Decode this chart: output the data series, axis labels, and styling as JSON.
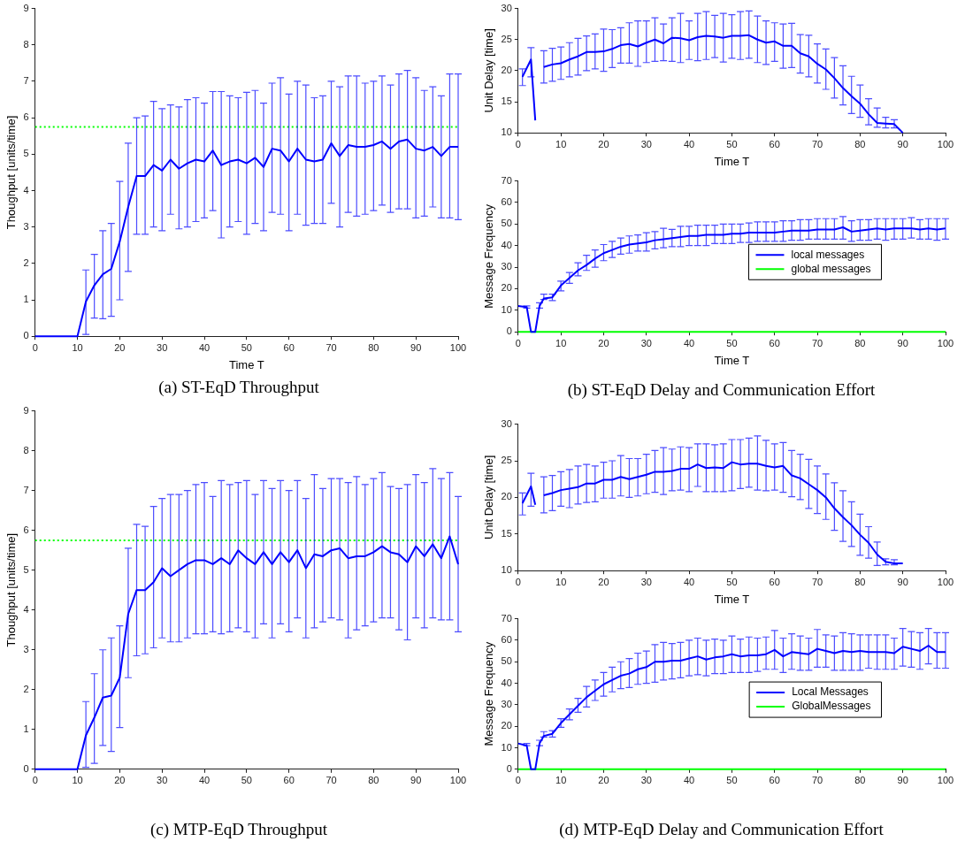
{
  "chart_data": [
    {
      "type": "line",
      "xlabel": "Time T",
      "ylabel": "Thoughput [units/time]",
      "xlim": [
        0,
        100
      ],
      "xticks": [
        0,
        10,
        20,
        30,
        40,
        50,
        60,
        70,
        80,
        90,
        100
      ],
      "ylim": [
        0,
        9
      ],
      "yticks": [
        0,
        1,
        2,
        3,
        4,
        5,
        6,
        7,
        8,
        9
      ],
      "marker": "none",
      "x": [
        0,
        2,
        4,
        6,
        8,
        10,
        12,
        14,
        16,
        18,
        20,
        22,
        24,
        26,
        28,
        30,
        32,
        34,
        36,
        38,
        40,
        42,
        44,
        46,
        48,
        50,
        52,
        54,
        56,
        58,
        60,
        62,
        64,
        66,
        68,
        70,
        72,
        74,
        76,
        78,
        80,
        82,
        84,
        86,
        88,
        90,
        92,
        94,
        96,
        98,
        100
      ],
      "series": [
        {
          "color": "#0000ff",
          "values": [
            0,
            0,
            0,
            0,
            0,
            0,
            0.95,
            1.4,
            1.7,
            1.85,
            2.6,
            3.55,
            4.4,
            4.4,
            4.7,
            4.55,
            4.85,
            4.6,
            4.75,
            4.85,
            4.8,
            5.1,
            4.7,
            4.8,
            4.85,
            4.75,
            4.9,
            4.65,
            5.15,
            5.1,
            4.8,
            5.15,
            4.85,
            4.8,
            4.85,
            5.3,
            4.95,
            5.25,
            5.2,
            5.2,
            5.25,
            5.35,
            5.15,
            5.35,
            5.4,
            5.15,
            5.1,
            5.2,
            4.95,
            5.2,
            5.2
          ],
          "errors": [
            null,
            null,
            null,
            null,
            null,
            null,
            [
              0.05,
              1.82
            ],
            [
              0.5,
              2.25
            ],
            [
              0.48,
              2.9
            ],
            [
              0.55,
              3.1
            ],
            [
              1.0,
              4.25
            ],
            [
              1.78,
              5.3
            ],
            [
              2.8,
              6.0
            ],
            [
              2.8,
              6.05
            ],
            [
              3.0,
              6.45
            ],
            [
              2.9,
              6.25
            ],
            [
              3.35,
              6.35
            ],
            [
              2.95,
              6.3
            ],
            [
              3.0,
              6.5
            ],
            [
              3.15,
              6.55
            ],
            [
              3.25,
              6.4
            ],
            [
              3.45,
              6.72
            ],
            [
              2.7,
              6.72
            ],
            [
              3.0,
              6.6
            ],
            [
              3.15,
              6.55
            ],
            [
              2.8,
              6.7
            ],
            [
              3.1,
              6.75
            ],
            [
              2.9,
              6.4
            ],
            [
              3.4,
              6.95
            ],
            [
              3.35,
              7.1
            ],
            [
              2.9,
              6.65
            ],
            [
              3.35,
              7.0
            ],
            [
              3.05,
              6.9
            ],
            [
              3.1,
              6.55
            ],
            [
              3.1,
              6.6
            ],
            [
              3.65,
              7.0
            ],
            [
              3.0,
              6.85
            ],
            [
              3.4,
              7.15
            ],
            [
              3.3,
              7.15
            ],
            [
              3.35,
              6.95
            ],
            [
              3.45,
              7.0
            ],
            [
              3.6,
              7.15
            ],
            [
              3.4,
              6.9
            ],
            [
              3.5,
              7.2
            ],
            [
              3.5,
              7.3
            ],
            [
              3.25,
              7.1
            ],
            [
              3.3,
              6.75
            ],
            [
              3.55,
              6.85
            ],
            [
              3.25,
              6.6
            ],
            [
              3.25,
              7.2
            ],
            [
              3.2,
              7.2
            ]
          ]
        }
      ],
      "ref_lines": [
        {
          "axis": "y",
          "value": 5.75,
          "color": "#00ff00",
          "line_style": "dotted"
        }
      ],
      "annotations": [
        "(a) ST-EqD Throughput"
      ]
    },
    {
      "type": "line",
      "xlabel": "Time T",
      "ylabel": "Unit Delay [time]",
      "xlim": [
        0,
        100
      ],
      "xticks": [
        0,
        10,
        20,
        30,
        40,
        50,
        60,
        70,
        80,
        90,
        100
      ],
      "ylim": [
        10,
        30
      ],
      "yticks": [
        10,
        15,
        20,
        25,
        30
      ],
      "marker": "none",
      "series": [
        {
          "color": "#0000ff",
          "x": [
            1,
            3,
            4,
            5,
            6,
            8,
            10,
            12,
            14,
            16,
            18,
            20,
            22,
            24,
            26,
            28,
            30,
            32,
            34,
            36,
            38,
            40,
            42,
            44,
            46,
            48,
            50,
            52,
            54,
            56,
            58,
            60,
            62,
            64,
            66,
            68,
            70,
            72,
            74,
            76,
            78,
            80,
            82,
            84,
            86,
            88,
            90
          ],
          "values": [
            19,
            21.8,
            12,
            null,
            20.6,
            21,
            21.2,
            21.8,
            22.3,
            23,
            23,
            23.1,
            23.5,
            24.1,
            24.3,
            23.9,
            24.5,
            25,
            24.4,
            25.3,
            25.2,
            24.9,
            25.4,
            25.6,
            25.5,
            25.3,
            25.6,
            25.6,
            25.7,
            25,
            24.5,
            24.7,
            24,
            24,
            22.8,
            22.3,
            21.1,
            20.2,
            18.8,
            17.2,
            15.9,
            14.7,
            13,
            11.6,
            11.5,
            11.4,
            10
          ],
          "errors": [
            [
              17.6,
              20.3
            ],
            [
              19,
              23.7
            ],
            null,
            null,
            [
              18,
              23.2
            ],
            [
              18.3,
              23.6
            ],
            [
              18.6,
              23.8
            ],
            [
              19,
              24.5
            ],
            [
              19.3,
              25.2
            ],
            [
              20,
              25.6
            ],
            [
              20.3,
              25.9
            ],
            [
              19.9,
              26.7
            ],
            [
              20.5,
              26.6
            ],
            [
              21.2,
              26.9
            ],
            [
              21.2,
              27.7
            ],
            [
              20.7,
              28
            ],
            [
              21.3,
              28
            ],
            [
              21.5,
              28.5
            ],
            [
              21.6,
              27.5
            ],
            [
              21.5,
              28.5
            ],
            [
              21.3,
              29.2
            ],
            [
              21.8,
              28
            ],
            [
              21.6,
              29.2
            ],
            [
              21.8,
              29.5
            ],
            [
              22.1,
              28.9
            ],
            [
              21.4,
              29.2
            ],
            [
              22,
              29
            ],
            [
              21.8,
              29.5
            ],
            [
              22,
              29.6
            ],
            [
              21.3,
              28.8
            ],
            [
              21,
              28
            ],
            [
              21.5,
              27.7
            ],
            [
              20.4,
              27.5
            ],
            [
              20.5,
              27.6
            ],
            [
              19.6,
              25.8
            ],
            [
              19,
              25.7
            ],
            [
              18,
              24.3
            ],
            [
              17,
              23.5
            ],
            [
              15.6,
              22.1
            ],
            [
              14.5,
              20.8
            ],
            [
              13.1,
              19.1
            ],
            [
              12.5,
              17.7
            ],
            [
              11.3,
              15.5
            ],
            [
              10.9,
              14
            ],
            [
              10.8,
              12.5
            ],
            [
              10.8,
              12.1
            ],
            null
          ]
        }
      ]
    },
    {
      "type": "line",
      "xlabel": "Time T",
      "ylabel": "Message Frequency",
      "xlim": [
        0,
        100
      ],
      "xticks": [
        0,
        10,
        20,
        30,
        40,
        50,
        60,
        70,
        80,
        90,
        100
      ],
      "ylim": [
        0,
        70
      ],
      "yticks": [
        0,
        10,
        20,
        30,
        40,
        50,
        60,
        70
      ],
      "marker": "none",
      "legend": "right",
      "series": [
        {
          "name": "local messages",
          "color": "#0000ff",
          "x": [
            0,
            2,
            3,
            4,
            5,
            6,
            8,
            10,
            12,
            14,
            16,
            18,
            20,
            22,
            24,
            26,
            28,
            30,
            32,
            34,
            36,
            38,
            40,
            42,
            44,
            46,
            48,
            50,
            52,
            54,
            56,
            58,
            60,
            62,
            64,
            66,
            68,
            70,
            72,
            74,
            76,
            78,
            80,
            82,
            84,
            86,
            88,
            90,
            92,
            94,
            96,
            98,
            100
          ],
          "values": [
            12,
            11.5,
            0,
            0,
            12,
            15.5,
            16,
            21.5,
            25,
            28.5,
            31,
            34,
            36.5,
            38,
            39.5,
            40.5,
            41,
            41.5,
            42.5,
            43,
            43.5,
            44,
            44.5,
            44.5,
            45,
            45,
            45,
            45.5,
            45.5,
            46,
            46,
            46,
            46,
            46.5,
            47,
            47,
            47,
            47.5,
            47.5,
            47.5,
            48.5,
            46.5,
            47,
            47.5,
            48,
            47.5,
            48,
            48,
            48,
            47.5,
            48,
            47.5,
            48
          ],
          "errors": [
            null,
            [
              11,
              12
            ],
            null,
            null,
            [
              11,
              13.5
            ],
            [
              15,
              17.5
            ],
            [
              14.5,
              17.5
            ],
            [
              19,
              23.5
            ],
            [
              22.5,
              27.5
            ],
            [
              26,
              32
            ],
            [
              28.5,
              35.5
            ],
            [
              30,
              38
            ],
            [
              33,
              40.5
            ],
            [
              34.5,
              42
            ],
            [
              36,
              43.5
            ],
            [
              36.5,
              44.5
            ],
            [
              37.5,
              45
            ],
            [
              37.5,
              46
            ],
            [
              38.5,
              46.5
            ],
            [
              39,
              48
            ],
            [
              39.5,
              47.5
            ],
            [
              39.5,
              49
            ],
            [
              40,
              49
            ],
            [
              40,
              49.5
            ],
            [
              40,
              49.5
            ],
            [
              41,
              49.5
            ],
            [
              41,
              50
            ],
            [
              41,
              50
            ],
            [
              41.5,
              50
            ],
            [
              41.5,
              50.5
            ],
            [
              42,
              51
            ],
            [
              42,
              51
            ],
            [
              42,
              51
            ],
            [
              42,
              51.5
            ],
            [
              42.5,
              51.5
            ],
            [
              42.5,
              52
            ],
            [
              43,
              52
            ],
            [
              43,
              52.5
            ],
            [
              43,
              52.5
            ],
            [
              43,
              52.5
            ],
            [
              43,
              53.5
            ],
            [
              42,
              51.5
            ],
            [
              42.5,
              52
            ],
            [
              42.5,
              52
            ],
            [
              43,
              52.5
            ],
            [
              42.5,
              52.5
            ],
            [
              43,
              52.5
            ],
            [
              43,
              52.5
            ],
            [
              43.5,
              53
            ],
            [
              43,
              52
            ],
            [
              43,
              52.5
            ],
            [
              42.5,
              52.5
            ],
            [
              43,
              52.5
            ]
          ]
        },
        {
          "name": "global messages",
          "color": "#00ff00",
          "x": [
            0,
            100
          ],
          "values": [
            0,
            0
          ]
        }
      ],
      "annotations": [
        "(b) ST-EqD Delay and Communication Effort"
      ]
    },
    {
      "type": "line",
      "ylabel": "Thoughput [units/time]",
      "xlim": [
        0,
        100
      ],
      "xticks": [
        0,
        10,
        20,
        30,
        40,
        50,
        60,
        70,
        80,
        90,
        100
      ],
      "ylim": [
        0,
        9
      ],
      "yticks": [
        0,
        1,
        2,
        3,
        4,
        5,
        6,
        7,
        8,
        9
      ],
      "marker": "none",
      "x": [
        0,
        2,
        4,
        6,
        8,
        10,
        12,
        14,
        16,
        18,
        20,
        22,
        24,
        26,
        28,
        30,
        32,
        34,
        36,
        38,
        40,
        42,
        44,
        46,
        48,
        50,
        52,
        54,
        56,
        58,
        60,
        62,
        64,
        66,
        68,
        70,
        72,
        74,
        76,
        78,
        80,
        82,
        84,
        86,
        88,
        90,
        92,
        94,
        96,
        98,
        100
      ],
      "series": [
        {
          "color": "#0000ff",
          "values": [
            0,
            0,
            0,
            0,
            0,
            0,
            0.85,
            1.3,
            1.8,
            1.85,
            2.3,
            3.9,
            4.5,
            4.5,
            4.7,
            5.05,
            4.85,
            5.0,
            5.15,
            5.25,
            5.25,
            5.15,
            5.3,
            5.15,
            5.5,
            5.3,
            5.15,
            5.45,
            5.15,
            5.45,
            5.2,
            5.5,
            5.05,
            5.4,
            5.35,
            5.5,
            5.55,
            5.3,
            5.35,
            5.35,
            5.45,
            5.6,
            5.45,
            5.4,
            5.2,
            5.6,
            5.35,
            5.65,
            5.3,
            5.85,
            5.15
          ],
          "errors": [
            null,
            null,
            null,
            null,
            null,
            null,
            [
              0.05,
              1.7
            ],
            [
              0.15,
              2.4
            ],
            [
              0.6,
              3.0
            ],
            [
              0.45,
              3.3
            ],
            [
              1.05,
              3.6
            ],
            [
              2.3,
              5.55
            ],
            [
              2.85,
              6.15
            ],
            [
              2.9,
              6.1
            ],
            [
              3.05,
              6.6
            ],
            [
              3.3,
              6.8
            ],
            [
              3.2,
              6.9
            ],
            [
              3.2,
              6.9
            ],
            [
              3.3,
              7.0
            ],
            [
              3.4,
              7.15
            ],
            [
              3.4,
              7.2
            ],
            [
              3.45,
              6.85
            ],
            [
              3.4,
              7.25
            ],
            [
              3.45,
              7.15
            ],
            [
              3.55,
              7.2
            ],
            [
              3.45,
              7.25
            ],
            [
              3.3,
              6.9
            ],
            [
              3.65,
              7.25
            ],
            [
              3.3,
              7.05
            ],
            [
              3.65,
              7.25
            ],
            [
              3.45,
              7.0
            ],
            [
              3.8,
              7.25
            ],
            [
              3.3,
              6.8
            ],
            [
              3.55,
              7.4
            ],
            [
              3.7,
              7.05
            ],
            [
              3.8,
              7.3
            ],
            [
              3.75,
              7.3
            ],
            [
              3.3,
              7.2
            ],
            [
              3.5,
              7.35
            ],
            [
              3.6,
              7.15
            ],
            [
              3.7,
              7.3
            ],
            [
              3.8,
              7.45
            ],
            [
              3.8,
              7.1
            ],
            [
              3.5,
              7.05
            ],
            [
              3.25,
              7.15
            ],
            [
              3.8,
              7.4
            ],
            [
              3.55,
              7.2
            ],
            [
              3.8,
              7.55
            ],
            [
              3.75,
              7.3
            ],
            [
              3.75,
              7.45
            ],
            [
              3.45,
              6.85
            ]
          ]
        }
      ],
      "ref_lines": [
        {
          "axis": "y",
          "value": 5.75,
          "color": "#00ff00",
          "line_style": "dotted"
        }
      ],
      "annotations": [
        "(c) MTP-EqD Throughput"
      ]
    },
    {
      "type": "line",
      "xlabel": "Time T",
      "ylabel": "Unit Delay [time]",
      "xlim": [
        0,
        100
      ],
      "xticks": [
        0,
        10,
        20,
        30,
        40,
        50,
        60,
        70,
        80,
        90,
        100
      ],
      "ylim": [
        10,
        30
      ],
      "yticks": [
        10,
        15,
        20,
        25,
        30
      ],
      "marker": "none",
      "series": [
        {
          "color": "#0000ff",
          "x": [
            1,
            3,
            4,
            5,
            6,
            8,
            10,
            12,
            14,
            16,
            18,
            20,
            22,
            24,
            26,
            28,
            30,
            32,
            34,
            36,
            38,
            40,
            42,
            44,
            46,
            48,
            50,
            52,
            54,
            56,
            58,
            60,
            62,
            64,
            66,
            68,
            70,
            72,
            74,
            76,
            78,
            80,
            82,
            84,
            86,
            88,
            90
          ],
          "values": [
            19.2,
            21.5,
            19,
            null,
            20.3,
            20.6,
            21,
            21.2,
            21.4,
            21.9,
            21.9,
            22.4,
            22.4,
            22.8,
            22.5,
            22.8,
            23.1,
            23.5,
            23.5,
            23.6,
            23.9,
            23.9,
            24.5,
            24,
            24.1,
            24,
            24.8,
            24.5,
            24.6,
            24.6,
            24.3,
            24.1,
            24.3,
            23,
            22.6,
            21.8,
            21,
            20,
            18.5,
            17.3,
            16.2,
            14.9,
            13.8,
            12.2,
            11.2,
            11,
            11
          ],
          "errors": [
            [
              17.6,
              20.6
            ],
            [
              18.8,
              23.3
            ],
            null,
            null,
            [
              17.9,
              22.8
            ],
            [
              18.2,
              23
            ],
            [
              18.8,
              23.5
            ],
            [
              18.6,
              23.8
            ],
            [
              19.1,
              24.3
            ],
            [
              19.3,
              24.5
            ],
            [
              19.4,
              24.3
            ],
            [
              19.9,
              24.8
            ],
            [
              19.9,
              25
            ],
            [
              20.2,
              25.7
            ],
            [
              20,
              25.3
            ],
            [
              20.2,
              25.3
            ],
            [
              20.5,
              25.9
            ],
            [
              20.7,
              26.4
            ],
            [
              20.4,
              26.8
            ],
            [
              20.9,
              26.6
            ],
            [
              21,
              26.9
            ],
            [
              20.8,
              26.8
            ],
            [
              21.5,
              27.3
            ],
            [
              20.8,
              27.3
            ],
            [
              20.8,
              27.2
            ],
            [
              20.8,
              27.3
            ],
            [
              20.9,
              27.9
            ],
            [
              21.2,
              27.9
            ],
            [
              21.4,
              28.1
            ],
            [
              21,
              28.4
            ],
            [
              20.9,
              27.8
            ],
            [
              21,
              27.3
            ],
            [
              20.7,
              27.5
            ],
            [
              20.1,
              26.4
            ],
            [
              19.7,
              25.9
            ],
            [
              18.5,
              25.2
            ],
            [
              17.8,
              24.3
            ],
            [
              17,
              23.2
            ],
            [
              15.5,
              22
            ],
            [
              14,
              20.9
            ],
            [
              13.3,
              19.4
            ],
            [
              12.1,
              17.7
            ],
            [
              11.7,
              16
            ],
            [
              10.7,
              13.9
            ],
            [
              10.8,
              11.6
            ],
            [
              10.8,
              11.5
            ],
            null
          ]
        }
      ]
    },
    {
      "type": "line",
      "ylabel": "Message Frequency",
      "xlim": [
        0,
        100
      ],
      "xticks": [
        0,
        10,
        20,
        30,
        40,
        50,
        60,
        70,
        80,
        90,
        100
      ],
      "ylim": [
        0,
        70
      ],
      "yticks": [
        0,
        10,
        20,
        30,
        40,
        50,
        60,
        70
      ],
      "marker": "none",
      "legend": "right",
      "series": [
        {
          "name": "Local Messages",
          "color": "#0000ff",
          "x": [
            0,
            2,
            3,
            4,
            5,
            6,
            8,
            10,
            12,
            14,
            16,
            18,
            20,
            22,
            24,
            26,
            28,
            30,
            32,
            34,
            36,
            38,
            40,
            42,
            44,
            46,
            48,
            50,
            52,
            54,
            56,
            58,
            60,
            62,
            64,
            66,
            68,
            70,
            72,
            74,
            76,
            78,
            80,
            82,
            84,
            86,
            88,
            90,
            92,
            94,
            96,
            98,
            100
          ],
          "values": [
            12,
            11,
            0,
            0,
            12,
            15.5,
            16.5,
            21.5,
            25.5,
            29.5,
            33.5,
            36.5,
            39.5,
            41.5,
            43.5,
            44.5,
            46.5,
            47.5,
            50,
            50,
            50.5,
            50.5,
            51.5,
            52.5,
            51,
            52,
            52.5,
            53.5,
            52.5,
            53,
            53,
            53.5,
            55.5,
            52.5,
            54.5,
            54,
            53.5,
            56,
            55,
            54,
            55,
            54.5,
            55,
            54.5,
            54.5,
            54.5,
            54,
            57,
            56,
            55,
            57.5,
            54.5,
            54.5
          ],
          "errors": [
            null,
            [
              11,
              12
            ],
            null,
            null,
            [
              11,
              13.5
            ],
            [
              15,
              17.5
            ],
            [
              15,
              18
            ],
            [
              19.5,
              23.5
            ],
            [
              23,
              28
            ],
            [
              26.5,
              33
            ],
            [
              29,
              38.5
            ],
            [
              32,
              41.5
            ],
            [
              34,
              45
            ],
            [
              36,
              47.5
            ],
            [
              37.5,
              50
            ],
            [
              38,
              51.5
            ],
            [
              39.5,
              54
            ],
            [
              40,
              55
            ],
            [
              40.5,
              58
            ],
            [
              41.5,
              59
            ],
            [
              42,
              58.5
            ],
            [
              42.5,
              59
            ],
            [
              43.5,
              60
            ],
            [
              44,
              61
            ],
            [
              43.5,
              60
            ],
            [
              44.5,
              60.5
            ],
            [
              44.5,
              60
            ],
            [
              45,
              62
            ],
            [
              45,
              60.5
            ],
            [
              45,
              61.5
            ],
            [
              45.5,
              61
            ],
            [
              46.5,
              61.5
            ],
            [
              46.5,
              64.5
            ],
            [
              45,
              61
            ],
            [
              46.5,
              63
            ],
            [
              46,
              62
            ],
            [
              46,
              61
            ],
            [
              47.5,
              65
            ],
            [
              47.5,
              62.5
            ],
            [
              46,
              62
            ],
            [
              46,
              63.5
            ],
            [
              46,
              63
            ],
            [
              46,
              62.5
            ],
            [
              47,
              62.5
            ],
            [
              46.5,
              62.5
            ],
            [
              46.5,
              62.5
            ],
            [
              46.5,
              61
            ],
            [
              48,
              65.5
            ],
            [
              47.5,
              64
            ],
            [
              46.5,
              63.5
            ],
            [
              49,
              65.5
            ],
            [
              47,
              63.5
            ],
            [
              47,
              63.5
            ]
          ]
        },
        {
          "name": "GlobalMessages",
          "color": "#00ff00",
          "x": [
            0,
            100
          ],
          "values": [
            0,
            0
          ]
        }
      ],
      "annotations": [
        "(d) MTP-EqD Delay and Communication Effort"
      ]
    }
  ]
}
